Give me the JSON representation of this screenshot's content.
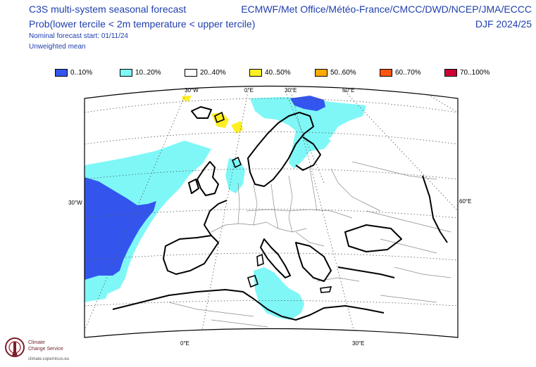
{
  "header": {
    "left_title": "C3S multi-system seasonal forecast",
    "left_subtitle": "Prob(lower tercile < 2m temperature < upper tercile)",
    "start_note": "Nominal forecast start: 01/11/24",
    "mean_note": "Unweighted mean",
    "right_title": "ECMWF/Met Office/Météo-France/CMCC/DWD/NCEP/JMA/ECCC",
    "right_subtitle": "DJF 2024/25"
  },
  "legend": [
    {
      "label": "0..10%",
      "color": "#3355ee"
    },
    {
      "label": "10..20%",
      "color": "#7ff7f7"
    },
    {
      "label": "20..40%",
      "color": "#ffffff"
    },
    {
      "label": "40..50%",
      "color": "#ffee22"
    },
    {
      "label": "50..60%",
      "color": "#ffaa00"
    },
    {
      "label": "60..70%",
      "color": "#ff5511"
    },
    {
      "label": "70..100%",
      "color": "#cc0033"
    }
  ],
  "axis_labels": {
    "top_30w": "30°W",
    "top_0e": "0°E",
    "top_30e": "30°E",
    "top_60e": "60°E",
    "left_30w": "30°W",
    "right_60e": "60°E",
    "bottom_0e": "0°E",
    "bottom_30e": "30°E"
  },
  "logo": {
    "line1": "Climate",
    "line2": "Change Service",
    "url": "climate.copernicus.eu"
  }
}
